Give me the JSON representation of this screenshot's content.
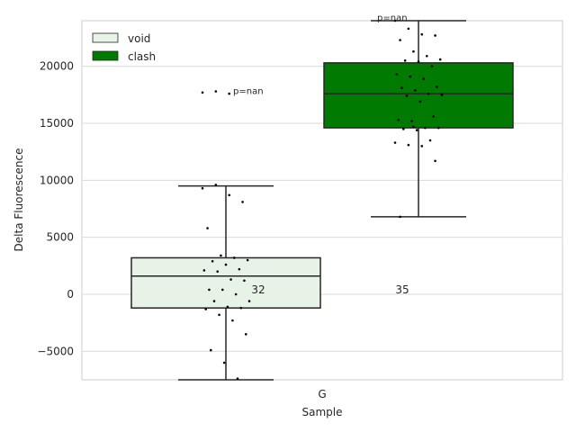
{
  "chart_data": {
    "type": "box",
    "xlabel": "Sample",
    "ylabel": "Delta Fluorescence",
    "categories": [
      "G"
    ],
    "ylim": [
      -7500,
      24000
    ],
    "yticks": [
      -5000,
      0,
      5000,
      10000,
      15000,
      20000
    ],
    "ytick_labels": [
      "−5000",
      "0",
      "5000",
      "10000",
      "15000",
      "20000"
    ],
    "grid": true,
    "legend_position": "upper-left",
    "series": [
      {
        "name": "void",
        "color": "#e8f3e8",
        "box": {
          "whisker_low": -7500,
          "q1": -1200,
          "median": 1600,
          "q3": 3200,
          "whisker_high": 9500
        },
        "n_label": "32",
        "p_label": "p=nan",
        "points": [
          9300,
          9600,
          8700,
          8100,
          5800,
          3400,
          3200,
          3000,
          2900,
          2600,
          2200,
          2100,
          2000,
          1300,
          1200,
          400,
          400,
          0,
          -600,
          -600,
          -1100,
          -1200,
          -1300,
          -1800,
          -2300,
          -3500,
          -4900,
          -6000,
          -7400,
          17700,
          17800,
          17600
        ]
      },
      {
        "name": "clash",
        "color": "#007a00",
        "box": {
          "whisker_low": 6800,
          "q1": 14600,
          "median": 17600,
          "q3": 20300,
          "whisker_high": 24000
        },
        "n_label": "35",
        "p_label": "p=nan",
        "points": [
          24000,
          23300,
          22800,
          22700,
          22300,
          21300,
          20900,
          20600,
          20500,
          20400,
          20000,
          19300,
          19100,
          18900,
          18200,
          18100,
          17900,
          17600,
          17500,
          17400,
          16900,
          15600,
          15300,
          15200,
          14600,
          14600,
          14500,
          14400,
          13500,
          13300,
          13100,
          13000,
          11700,
          6800,
          14700
        ]
      }
    ]
  }
}
